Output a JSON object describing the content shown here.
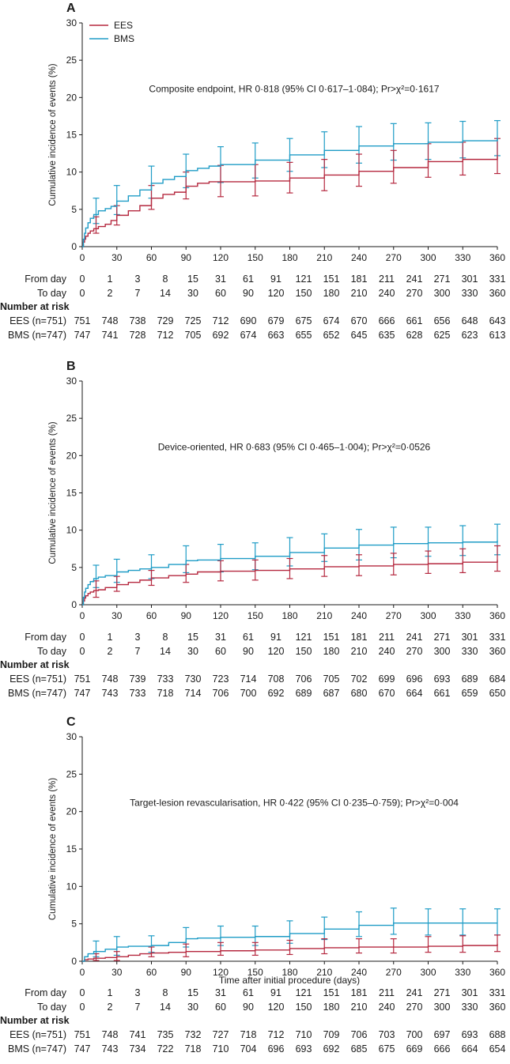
{
  "figure": {
    "row_labels": {
      "from": "From day",
      "to": "To day",
      "risk_heading": "Number at risk"
    },
    "from_days": [
      0,
      1,
      3,
      8,
      15,
      31,
      61,
      91,
      121,
      151,
      181,
      211,
      241,
      271,
      301,
      331
    ],
    "to_days": [
      0,
      2,
      7,
      14,
      30,
      60,
      90,
      120,
      150,
      180,
      210,
      240,
      270,
      300,
      330,
      360
    ],
    "colors": {
      "EES": "#b5283f",
      "BMS": "#1f9cc6",
      "axis": "#1a1a1a"
    }
  },
  "chart_data": [
    {
      "panel": "A",
      "type": "line",
      "title": "Composite endpoint, HR 0·818 (95% CI 0·617–1·084); Pr>χ²=0·1617",
      "xlabel": "",
      "ylabel": "Cumulative incidence of events (%)",
      "xlim": [
        0,
        360
      ],
      "ylim": [
        0,
        30
      ],
      "xticks": [
        0,
        30,
        60,
        90,
        120,
        150,
        180,
        210,
        240,
        270,
        300,
        330,
        360
      ],
      "yticks": [
        0,
        5,
        10,
        15,
        20,
        25,
        30
      ],
      "legend": {
        "placement": "top-left",
        "entries": [
          "EES",
          "BMS"
        ]
      },
      "series": [
        {
          "name": "EES",
          "x": [
            0,
            1,
            2,
            3,
            5,
            7,
            10,
            14,
            20,
            25,
            30,
            40,
            50,
            60,
            70,
            80,
            90,
            100,
            110,
            120,
            150,
            180,
            210,
            240,
            270,
            300,
            330,
            360
          ],
          "y": [
            0,
            0.6,
            1.0,
            1.4,
            1.8,
            2.1,
            2.4,
            2.7,
            3.0,
            3.5,
            4.2,
            4.8,
            5.5,
            6.5,
            7.0,
            7.3,
            8.1,
            8.5,
            8.7,
            8.7,
            8.8,
            9.2,
            9.6,
            10.1,
            10.6,
            11.4,
            11.7,
            12.1
          ]
        },
        {
          "name": "BMS",
          "x": [
            0,
            1,
            2,
            3,
            5,
            7,
            10,
            14,
            20,
            25,
            30,
            40,
            50,
            60,
            70,
            80,
            90,
            100,
            110,
            120,
            150,
            180,
            210,
            240,
            270,
            300,
            330,
            360
          ],
          "y": [
            0,
            1.0,
            1.8,
            2.5,
            3.2,
            3.8,
            4.3,
            4.8,
            5.1,
            5.4,
            6.1,
            6.8,
            7.6,
            8.5,
            9.0,
            9.4,
            10.2,
            10.5,
            10.8,
            11.0,
            11.6,
            12.3,
            12.9,
            13.5,
            13.8,
            14.0,
            14.2,
            14.6
          ]
        }
      ],
      "error_bars": {
        "x": [
          12,
          30,
          60,
          90,
          120,
          150,
          180,
          210,
          240,
          270,
          300,
          330,
          360
        ],
        "EES": {
          "low": [
            1.8,
            2.9,
            5.0,
            6.4,
            6.7,
            6.8,
            7.2,
            7.5,
            8.1,
            8.5,
            9.3,
            9.6,
            9.8
          ],
          "high": [
            4.0,
            5.5,
            8.2,
            10.0,
            10.9,
            11.0,
            11.3,
            11.7,
            12.4,
            12.9,
            13.8,
            14.0,
            14.5
          ]
        },
        "BMS": {
          "low": [
            3.1,
            4.3,
            6.5,
            7.9,
            8.6,
            9.2,
            10.1,
            10.6,
            11.2,
            11.6,
            11.7,
            11.9,
            12.2
          ],
          "high": [
            6.5,
            8.2,
            10.8,
            12.4,
            13.4,
            13.9,
            14.5,
            15.4,
            16.1,
            16.5,
            16.6,
            16.8,
            16.9
          ]
        }
      },
      "risk": {
        "EES": {
          "label": "EES (n=751)",
          "values": [
            751,
            748,
            738,
            729,
            725,
            712,
            690,
            679,
            675,
            674,
            670,
            666,
            661,
            656,
            648,
            643
          ]
        },
        "BMS": {
          "label": "BMS (n=747)",
          "values": [
            747,
            741,
            728,
            712,
            705,
            692,
            674,
            663,
            655,
            652,
            645,
            635,
            628,
            625,
            623,
            613
          ]
        }
      }
    },
    {
      "panel": "B",
      "type": "line",
      "title": "Device-oriented, HR 0·683 (95% CI 0·465–1·004); Pr>χ²=0·0526",
      "xlabel": "",
      "ylabel": "Cumulative incidence of events (%)",
      "xlim": [
        0,
        360
      ],
      "ylim": [
        0,
        30
      ],
      "xticks": [
        0,
        30,
        60,
        90,
        120,
        150,
        180,
        210,
        240,
        270,
        300,
        330,
        360
      ],
      "yticks": [
        0,
        5,
        10,
        15,
        20,
        25,
        30
      ],
      "series": [
        {
          "name": "EES",
          "x": [
            0,
            1,
            2,
            3,
            5,
            7,
            10,
            14,
            20,
            30,
            40,
            50,
            60,
            75,
            90,
            100,
            120,
            150,
            180,
            210,
            240,
            270,
            300,
            330,
            360
          ],
          "y": [
            0,
            0.5,
            0.9,
            1.2,
            1.5,
            1.7,
            1.9,
            2.0,
            2.3,
            2.7,
            3.0,
            3.3,
            3.6,
            3.9,
            4.1,
            4.4,
            4.5,
            4.6,
            4.8,
            5.1,
            5.2,
            5.4,
            5.5,
            5.7,
            6.0
          ]
        },
        {
          "name": "BMS",
          "x": [
            0,
            1,
            2,
            3,
            5,
            7,
            10,
            14,
            20,
            30,
            40,
            50,
            60,
            75,
            90,
            100,
            120,
            150,
            180,
            210,
            240,
            270,
            300,
            330,
            360
          ],
          "y": [
            0,
            1.0,
            1.7,
            2.2,
            2.7,
            3.1,
            3.5,
            3.7,
            3.9,
            4.4,
            4.6,
            4.8,
            5.0,
            5.4,
            5.9,
            6.0,
            6.2,
            6.5,
            7.0,
            7.6,
            8.0,
            8.2,
            8.3,
            8.4,
            8.6
          ]
        }
      ],
      "error_bars": {
        "x": [
          12,
          30,
          60,
          90,
          120,
          150,
          180,
          210,
          240,
          270,
          300,
          330,
          360
        ],
        "EES": {
          "low": [
            1.0,
            1.8,
            2.6,
            3.0,
            3.2,
            3.3,
            3.5,
            3.8,
            3.9,
            4.0,
            4.2,
            4.3,
            4.5
          ],
          "high": [
            3.2,
            3.8,
            4.6,
            5.4,
            5.9,
            6.0,
            6.2,
            6.6,
            6.7,
            6.9,
            7.2,
            7.5,
            7.9
          ]
        },
        "BMS": {
          "low": [
            2.3,
            3.0,
            3.5,
            4.3,
            4.4,
            4.7,
            5.2,
            5.8,
            6.0,
            6.3,
            6.5,
            6.6,
            6.7
          ],
          "high": [
            5.3,
            6.1,
            6.7,
            7.9,
            8.1,
            8.3,
            9.0,
            9.5,
            10.1,
            10.4,
            10.4,
            10.6,
            10.8
          ]
        }
      },
      "risk": {
        "EES": {
          "label": "EES (n=751)",
          "values": [
            751,
            748,
            739,
            733,
            730,
            723,
            714,
            708,
            706,
            705,
            702,
            699,
            696,
            693,
            689,
            684
          ]
        },
        "BMS": {
          "label": "BMS (n=747)",
          "values": [
            747,
            743,
            733,
            718,
            714,
            706,
            700,
            692,
            689,
            687,
            680,
            670,
            664,
            661,
            659,
            650
          ]
        }
      }
    },
    {
      "panel": "C",
      "type": "line",
      "title": "Target-lesion revascularisation, HR 0·422 (95% CI 0·235–0·759); Pr>χ²=0·004",
      "xlabel": "Time after initial procedure (days)",
      "ylabel": "Cumulative incidence of events (%)",
      "xlim": [
        0,
        360
      ],
      "ylim": [
        0,
        30
      ],
      "xticks": [
        0,
        30,
        60,
        90,
        120,
        150,
        180,
        210,
        240,
        270,
        300,
        330,
        360
      ],
      "yticks": [
        0,
        5,
        10,
        15,
        20,
        25,
        30
      ],
      "series": [
        {
          "name": "EES",
          "x": [
            0,
            2,
            5,
            10,
            20,
            30,
            40,
            50,
            60,
            75,
            90,
            100,
            120,
            150,
            180,
            210,
            240,
            270,
            300,
            330,
            360
          ],
          "y": [
            0,
            0.2,
            0.3,
            0.4,
            0.5,
            0.6,
            0.8,
            1.0,
            1.1,
            1.2,
            1.3,
            1.3,
            1.4,
            1.5,
            1.7,
            1.8,
            1.9,
            1.9,
            2.0,
            2.1,
            2.3
          ]
        },
        {
          "name": "BMS",
          "x": [
            0,
            2,
            5,
            10,
            20,
            30,
            40,
            50,
            60,
            75,
            90,
            100,
            120,
            150,
            180,
            210,
            240,
            270,
            300,
            330,
            360
          ],
          "y": [
            0,
            0.6,
            1.0,
            1.3,
            1.6,
            1.9,
            2.0,
            2.0,
            2.1,
            2.5,
            3.0,
            3.1,
            3.2,
            3.3,
            3.7,
            4.3,
            4.8,
            5.1,
            5.1,
            5.1,
            5.1
          ]
        }
      ],
      "error_bars": {
        "x": [
          12,
          30,
          60,
          90,
          120,
          150,
          180,
          210,
          240,
          270,
          300,
          330,
          360
        ],
        "EES": {
          "low": [
            0.1,
            0.1,
            0.6,
            0.6,
            0.8,
            0.8,
            0.9,
            1.0,
            1.1,
            1.1,
            1.2,
            1.2,
            1.3
          ],
          "high": [
            1.0,
            1.3,
            1.9,
            2.3,
            2.5,
            2.5,
            2.8,
            3.0,
            3.0,
            3.0,
            3.3,
            3.4,
            3.5
          ]
        },
        "BMS": {
          "low": [
            0.6,
            0.8,
            1.2,
            1.9,
            2.1,
            2.1,
            2.4,
            2.9,
            3.3,
            3.6,
            3.5,
            3.5,
            3.5
          ],
          "high": [
            2.7,
            3.3,
            3.4,
            4.5,
            4.7,
            4.7,
            5.4,
            5.9,
            6.6,
            7.1,
            7.0,
            7.0,
            7.0
          ]
        }
      },
      "risk": {
        "EES": {
          "label": "EES (n=751)",
          "values": [
            751,
            748,
            741,
            735,
            732,
            727,
            718,
            712,
            710,
            709,
            706,
            703,
            700,
            697,
            693,
            688
          ]
        },
        "BMS": {
          "label": "BMS (n=747)",
          "values": [
            747,
            743,
            734,
            722,
            718,
            710,
            704,
            696,
            693,
            692,
            685,
            675,
            669,
            666,
            664,
            654
          ]
        }
      }
    }
  ]
}
